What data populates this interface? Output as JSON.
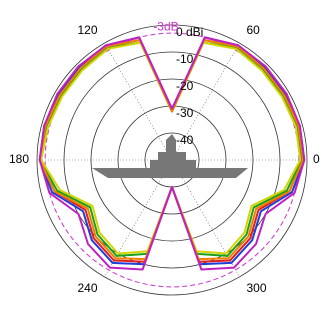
{
  "chart_data": {
    "type": "polar",
    "rlim": [
      -50,
      0
    ],
    "rticks": [
      {
        "value": 0,
        "label": "0 dBi"
      },
      -10,
      -20,
      -30,
      -40
    ],
    "thetaticks": [
      0,
      60,
      120,
      180,
      240,
      300
    ],
    "reference": {
      "value": -3,
      "label": "-3dB",
      "color": "#cc33cc"
    },
    "grid": true,
    "theta": [
      0,
      15,
      30,
      45,
      60,
      75,
      90,
      105,
      120,
      135,
      150,
      165,
      180,
      195,
      210,
      225,
      240,
      255,
      270,
      285,
      300,
      315,
      330,
      345
    ],
    "series": [
      {
        "color": "#1f3fd6",
        "values": [
          -1,
          -1,
          -1.5,
          -1.5,
          -1,
          -3,
          -32,
          -3,
          -1,
          -1.5,
          -1.5,
          -1,
          -1,
          -4,
          -12,
          -8,
          -6,
          -10,
          -40,
          -10,
          -6,
          -8,
          -12,
          -4
        ]
      },
      {
        "color": "#e02020",
        "values": [
          -1.5,
          -1.5,
          -2,
          -2,
          -1.5,
          -4,
          -32,
          -4,
          -1.5,
          -2,
          -2,
          -1.5,
          -1,
          -5,
          -13,
          -9,
          -7,
          -11,
          -40,
          -11,
          -7,
          -9,
          -13,
          -5
        ]
      },
      {
        "color": "#1aa01a",
        "values": [
          -2,
          -2,
          -2.5,
          -2.5,
          -2,
          -5,
          -32,
          -5,
          -2,
          -2.5,
          -2.5,
          -2,
          -1,
          -6,
          -15,
          -11,
          -9,
          -14,
          -40,
          -14,
          -9,
          -11,
          -15,
          -6
        ]
      },
      {
        "color": "#d4d400",
        "values": [
          -2.5,
          -2.5,
          -3,
          -3,
          -2.5,
          -5,
          -32,
          -5,
          -2.5,
          -3,
          -3,
          -2.5,
          -1.5,
          -7,
          -16,
          -12,
          -10,
          -15,
          -40,
          -15,
          -10,
          -12,
          -16,
          -7
        ]
      },
      {
        "color": "#f08000",
        "values": [
          -1.5,
          -1.5,
          -2,
          -2,
          -1.5,
          -4,
          -32,
          -4,
          -1.5,
          -2,
          -2,
          -1.5,
          -1,
          -5,
          -14,
          -10,
          -8,
          -12,
          -40,
          -12,
          -8,
          -10,
          -14,
          -5
        ]
      },
      {
        "color": "#c020c0",
        "values": [
          -1,
          -1,
          -1,
          -1,
          -1,
          -3,
          -31,
          -3,
          -1,
          -1,
          -1,
          -1,
          -1,
          -3,
          -10,
          -6,
          -4,
          -8,
          -40,
          -8,
          -4,
          -6,
          -10,
          -3
        ]
      }
    ]
  }
}
